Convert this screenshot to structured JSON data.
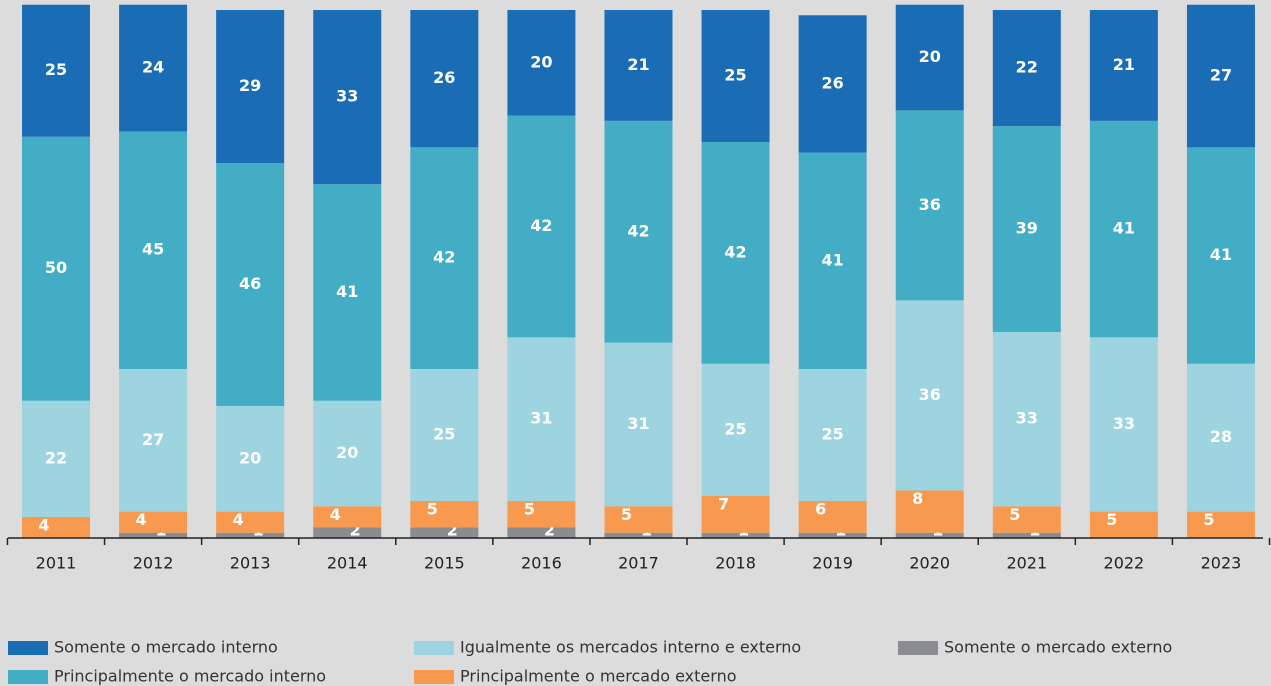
{
  "chart_data": {
    "type": "stacked_bar",
    "categories": [
      "2011",
      "2012",
      "2013",
      "2014",
      "2015",
      "2016",
      "2017",
      "2018",
      "2019",
      "2020",
      "2021",
      "2022",
      "2023"
    ],
    "ylim": [
      0,
      100
    ],
    "series": [
      {
        "name": "Somente o mercado interno",
        "color": "#1a6db4",
        "values": [
          25,
          24,
          29,
          33,
          26,
          20,
          21,
          25,
          26,
          20,
          22,
          21,
          27
        ]
      },
      {
        "name": "Principalmente o mercado interno",
        "color": "#43adc5",
        "values": [
          50,
          45,
          46,
          41,
          42,
          42,
          42,
          42,
          41,
          36,
          39,
          41,
          41
        ]
      },
      {
        "name": "Igualmente os mercados interno e externo",
        "color": "#9dd4df",
        "values": [
          22,
          27,
          20,
          20,
          25,
          31,
          31,
          25,
          25,
          36,
          33,
          33,
          28
        ]
      },
      {
        "name": "Principalmente o mercado externo",
        "color": "#f79a4f",
        "values": [
          4,
          4,
          4,
          4,
          5,
          5,
          5,
          7,
          6,
          8,
          5,
          5,
          5
        ]
      },
      {
        "name": "Somente o mercado externo",
        "color": "#8a8c8f",
        "values": [
          0,
          1,
          1,
          2,
          2,
          2,
          1,
          1,
          1,
          1,
          1,
          0,
          0
        ]
      }
    ]
  }
}
